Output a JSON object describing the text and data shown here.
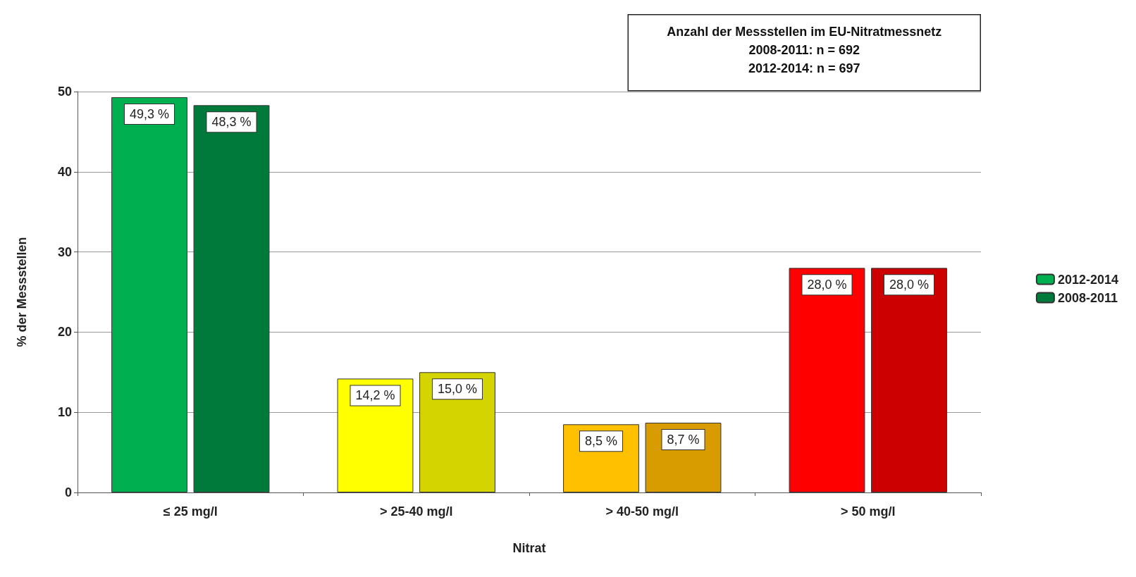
{
  "chart_data": {
    "type": "bar",
    "xlabel": "Nitrat",
    "ylabel": "% der Messstellen",
    "categories": [
      "≤ 25 mg/l",
      "> 25-40 mg/l",
      "> 40-50 mg/l",
      "> 50 mg/l"
    ],
    "series": [
      {
        "name": "2012-2014",
        "colors": [
          "#00b050",
          "#ffff00",
          "#ffc000",
          "#ff0000"
        ],
        "values": [
          49.3,
          14.2,
          8.5,
          28.0
        ],
        "value_labels": [
          "49,3 %",
          "14,2 %",
          "8,5 %",
          "28,0 %"
        ]
      },
      {
        "name": "2008-2011",
        "colors": [
          "#007a3a",
          "#d4d400",
          "#d99c00",
          "#cc0000"
        ],
        "values": [
          48.3,
          15.0,
          8.7,
          28.0
        ],
        "value_labels": [
          "48,3 %",
          "15,0 %",
          "8,7 %",
          "28,0 %"
        ]
      }
    ],
    "ylim": [
      0,
      50
    ],
    "yticks": [
      0,
      10,
      20,
      30,
      40,
      50
    ],
    "grid": "y",
    "legend": "right",
    "annotations": [
      "Anzahl der Messstellen im EU-Nitratmessnetz",
      "2008-2011: n = 692",
      "2012-2014: n = 697"
    ]
  }
}
